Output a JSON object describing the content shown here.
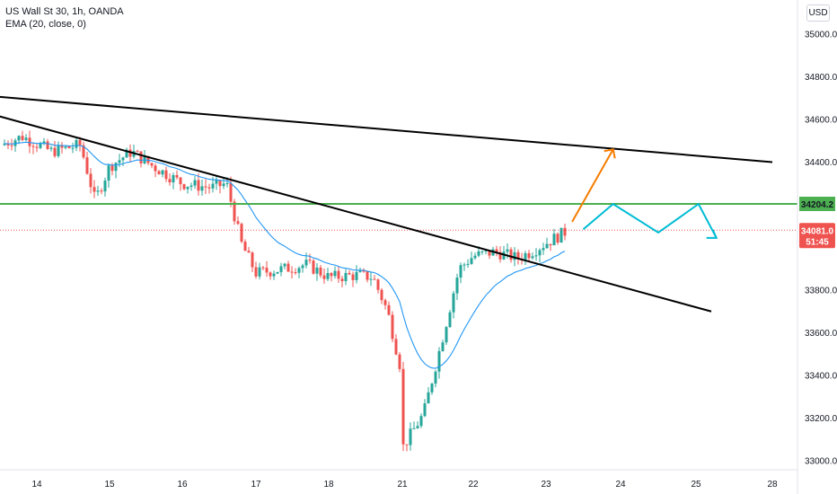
{
  "header": {
    "symbol_line": "US Wall St 30, 1h, OANDA",
    "indicator_line": "EMA (20, close, 0)"
  },
  "currency": "USD",
  "badges": {
    "level": "34204.2",
    "price": "34081.0",
    "countdown": "51:45"
  },
  "colors": {
    "up": "#26a69a",
    "down": "#ef5350",
    "ema": "#2196f3",
    "trend": "#000000",
    "level": "#4caf50",
    "orange_arrow": "#f57c00",
    "cyan_path": "#00bcd4",
    "price_line": "#ef5350"
  },
  "chart_data": {
    "type": "candlestick",
    "y_ticks": [
      33000,
      33200,
      33400,
      33600,
      33800,
      34000,
      34200,
      34400,
      34600,
      34800,
      35000
    ],
    "y_tick_labels": [
      "33000.0",
      "33200.0",
      "33400.0",
      "33600.0",
      "33800.0",
      "",
      "",
      "34400.0",
      "34600.0",
      "34800.0",
      "35000.0"
    ],
    "x_ticks": [
      "14",
      "15",
      "16",
      "17",
      "18",
      "21",
      "22",
      "23",
      "24",
      "25",
      "28"
    ],
    "ema_label": "EMA (20, close, 0)",
    "level": 34204.2,
    "last_price": 34081.0,
    "trendlines": [
      {
        "from": [
          "13",
          34720
        ],
        "to": [
          "28",
          34400
        ]
      },
      {
        "from": [
          "13",
          34660
        ],
        "to": [
          "25.6",
          33700
        ]
      }
    ],
    "projection_orange": {
      "from": [
        "23.35",
        34120
      ],
      "to": [
        "23.9",
        34460
      ]
    },
    "projection_cyan": [
      [
        "23.5",
        34085
      ],
      [
        "23.9",
        34204
      ],
      [
        "24.5",
        34070
      ],
      [
        "25.1",
        34204
      ],
      [
        "25.8",
        34045
      ]
    ],
    "anchors": [
      [
        "13.5",
        34480
      ],
      [
        "13.8",
        34520
      ],
      [
        "14.2",
        34450
      ],
      [
        "14.6",
        34480
      ],
      [
        "14.8",
        34220
      ],
      [
        "15.0",
        34380
      ],
      [
        "15.3",
        34450
      ],
      [
        "15.6",
        34380
      ],
      [
        "16.0",
        34300
      ],
      [
        "16.4",
        34280
      ],
      [
        "16.6",
        34300
      ],
      [
        "16.8",
        34020
      ],
      [
        "17.0",
        33880
      ],
      [
        "17.4",
        33900
      ],
      [
        "17.7",
        33920
      ],
      [
        "18.0",
        33860
      ],
      [
        "18.4",
        33870
      ],
      [
        "18.6",
        33860
      ],
      [
        "18.8",
        33700
      ],
      [
        "19.0",
        33400
      ],
      [
        "19.2",
        33200
      ],
      [
        "21.0",
        33060
      ],
      [
        "21.3",
        33220
      ],
      [
        "21.6",
        33620
      ],
      [
        "21.8",
        33900
      ],
      [
        "22.0",
        33960
      ],
      [
        "22.3",
        33980
      ],
      [
        "22.6",
        33950
      ],
      [
        "22.8",
        33980
      ],
      [
        "23.0",
        34020
      ],
      [
        "23.3",
        34081
      ]
    ]
  }
}
